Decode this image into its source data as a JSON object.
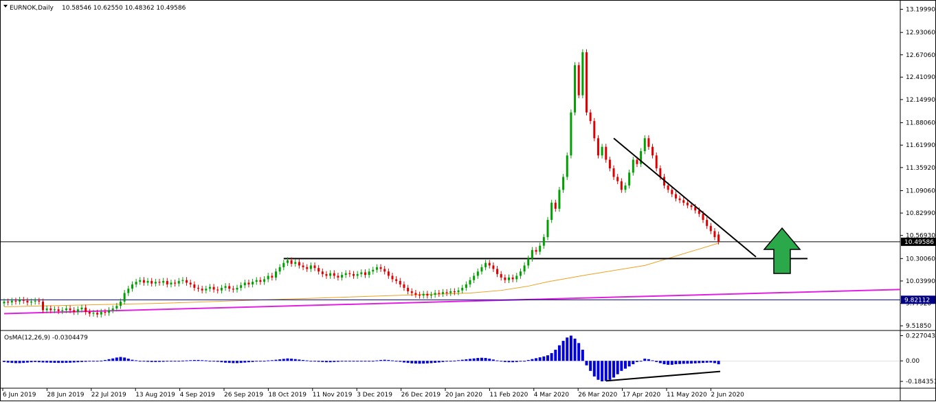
{
  "header": {
    "symbol_tf": "EURNOK,Daily",
    "ohlc": "10.58546 10.62550 10.48362 10.49586"
  },
  "chart_data": {
    "type": "candlestick",
    "symbol": "EURNOK",
    "timeframe": "Daily",
    "price_axis": {
      "labels": [
        "13.19990",
        "12.93060",
        "12.67060",
        "12.41090",
        "12.14990",
        "11.88060",
        "11.61990",
        "11.35920",
        "11.09060",
        "10.82990",
        "10.56930",
        "10.30060",
        "10.03990",
        "9.77920",
        "9.51850"
      ],
      "range": [
        9.48,
        13.26
      ]
    },
    "time_axis": {
      "labels": [
        "6 Jun 2019",
        "28 Jun 2019",
        "22 Jul 2019",
        "13 Aug 2019",
        "4 Sep 2019",
        "26 Sep 2019",
        "18 Oct 2019",
        "11 Nov 2019",
        "3 Dec 2019",
        "26 Dec 2019",
        "20 Jan 2020",
        "11 Feb 2020",
        "4 Mar 2020",
        "26 Mar 2020",
        "17 Apr 2020",
        "11 May 2020",
        "2 Jun 2020"
      ]
    },
    "current_price_label": "10.49586",
    "support_price_label": "9.82112",
    "current_price": 10.49586,
    "support_price": 9.82112,
    "resistance_level": 10.3,
    "colors": {
      "bull": "#00a000",
      "bear": "#e00000",
      "ma": "#f0a020",
      "trend": "#e020e0",
      "support": "#000080",
      "arrow": "#2aa84a",
      "osma": "#0000dd"
    },
    "candles": {
      "open_close_pairs": [
        [
          9.78,
          9.8
        ],
        [
          9.8,
          9.79
        ],
        [
          9.79,
          9.81
        ],
        [
          9.81,
          9.8
        ],
        [
          9.8,
          9.82
        ],
        [
          9.82,
          9.81
        ],
        [
          9.81,
          9.79
        ],
        [
          9.79,
          9.8
        ],
        [
          9.8,
          9.81
        ],
        [
          9.81,
          9.8
        ],
        [
          9.8,
          9.7
        ],
        [
          9.7,
          9.72
        ],
        [
          9.72,
          9.7
        ],
        [
          9.7,
          9.71
        ],
        [
          9.71,
          9.69
        ],
        [
          9.69,
          9.7
        ],
        [
          9.7,
          9.72
        ],
        [
          9.72,
          9.7
        ],
        [
          9.7,
          9.68
        ],
        [
          9.68,
          9.71
        ],
        [
          9.71,
          9.73
        ],
        [
          9.73,
          9.68
        ],
        [
          9.68,
          9.66
        ],
        [
          9.66,
          9.67
        ],
        [
          9.67,
          9.65
        ],
        [
          9.65,
          9.68
        ],
        [
          9.68,
          9.67
        ],
        [
          9.67,
          9.7
        ],
        [
          9.7,
          9.72
        ],
        [
          9.72,
          9.75
        ],
        [
          9.75,
          9.8
        ],
        [
          9.8,
          9.9
        ],
        [
          9.9,
          9.95
        ],
        [
          9.95,
          10.0
        ],
        [
          10.0,
          10.03
        ],
        [
          10.03,
          10.05
        ],
        [
          10.05,
          10.02
        ],
        [
          10.02,
          10.04
        ],
        [
          10.04,
          10.01
        ],
        [
          10.01,
          10.03
        ],
        [
          10.03,
          10.02
        ],
        [
          10.02,
          10.04
        ],
        [
          10.04,
          10.0
        ],
        [
          10.0,
          10.02
        ],
        [
          10.02,
          10.01
        ],
        [
          10.01,
          10.04
        ],
        [
          10.04,
          10.05
        ],
        [
          10.05,
          10.02
        ],
        [
          10.02,
          10.0
        ],
        [
          10.0,
          9.96
        ],
        [
          9.96,
          9.95
        ],
        [
          9.95,
          9.93
        ],
        [
          9.93,
          9.95
        ],
        [
          9.95,
          9.97
        ],
        [
          9.97,
          9.94
        ],
        [
          9.94,
          9.93
        ],
        [
          9.93,
          9.96
        ],
        [
          9.96,
          9.98
        ],
        [
          9.98,
          9.95
        ],
        [
          9.95,
          9.94
        ],
        [
          9.94,
          9.96
        ],
        [
          9.96,
          9.99
        ],
        [
          9.99,
          10.02
        ],
        [
          10.02,
          10.0
        ],
        [
          10.0,
          10.03
        ],
        [
          10.03,
          10.05
        ],
        [
          10.05,
          10.03
        ],
        [
          10.03,
          10.06
        ],
        [
          10.06,
          10.1
        ],
        [
          10.1,
          10.08
        ],
        [
          10.08,
          10.15
        ],
        [
          10.15,
          10.2
        ],
        [
          10.2,
          10.25
        ],
        [
          10.25,
          10.28
        ],
        [
          10.28,
          10.24
        ],
        [
          10.24,
          10.26
        ],
        [
          10.26,
          10.22
        ],
        [
          10.22,
          10.2
        ],
        [
          10.2,
          10.18
        ],
        [
          10.18,
          10.22
        ],
        [
          10.22,
          10.19
        ],
        [
          10.19,
          10.15
        ],
        [
          10.15,
          10.12
        ],
        [
          10.12,
          10.1
        ],
        [
          10.1,
          10.13
        ],
        [
          10.13,
          10.1
        ],
        [
          10.1,
          10.08
        ],
        [
          10.08,
          10.11
        ],
        [
          10.11,
          10.13
        ],
        [
          10.13,
          10.12
        ],
        [
          10.12,
          10.1
        ],
        [
          10.1,
          10.12
        ],
        [
          10.12,
          10.14
        ],
        [
          10.14,
          10.11
        ],
        [
          10.11,
          10.15
        ],
        [
          10.15,
          10.17
        ],
        [
          10.17,
          10.2
        ],
        [
          10.2,
          10.18
        ],
        [
          10.18,
          10.15
        ],
        [
          10.15,
          10.1
        ],
        [
          10.1,
          10.06
        ],
        [
          10.06,
          10.04
        ],
        [
          10.04,
          10.0
        ],
        [
          10.0,
          9.96
        ],
        [
          9.96,
          9.92
        ],
        [
          9.92,
          9.9
        ],
        [
          9.9,
          9.88
        ],
        [
          9.88,
          9.87
        ],
        [
          9.87,
          9.89
        ],
        [
          9.89,
          9.87
        ],
        [
          9.87,
          9.88
        ],
        [
          9.88,
          9.9
        ],
        [
          9.9,
          9.89
        ],
        [
          9.89,
          9.91
        ],
        [
          9.91,
          9.9
        ],
        [
          9.9,
          9.92
        ],
        [
          9.92,
          9.91
        ],
        [
          9.91,
          9.93
        ],
        [
          9.93,
          9.96
        ],
        [
          9.96,
          10.0
        ],
        [
          10.0,
          10.05
        ],
        [
          10.05,
          10.1
        ],
        [
          10.1,
          10.15
        ],
        [
          10.15,
          10.2
        ],
        [
          10.2,
          10.25
        ],
        [
          10.25,
          10.22
        ],
        [
          10.22,
          10.18
        ],
        [
          10.18,
          10.12
        ],
        [
          10.12,
          10.08
        ],
        [
          10.08,
          10.05
        ],
        [
          10.05,
          10.08
        ],
        [
          10.08,
          10.06
        ],
        [
          10.06,
          10.1
        ],
        [
          10.1,
          10.15
        ],
        [
          10.15,
          10.22
        ],
        [
          10.22,
          10.3
        ],
        [
          10.3,
          10.4
        ],
        [
          10.4,
          10.38
        ],
        [
          10.38,
          10.45
        ],
        [
          10.45,
          10.55
        ],
        [
          10.55,
          10.75
        ],
        [
          10.75,
          10.95
        ],
        [
          10.95,
          10.88
        ],
        [
          10.88,
          11.1
        ],
        [
          11.1,
          11.25
        ],
        [
          11.25,
          11.5
        ],
        [
          11.5,
          12.0
        ],
        [
          12.0,
          12.55
        ],
        [
          12.55,
          12.2
        ],
        [
          12.2,
          12.7
        ],
        [
          12.7,
          12.0
        ],
        [
          12.0,
          11.9
        ],
        [
          11.9,
          11.7
        ],
        [
          11.7,
          11.5
        ],
        [
          11.5,
          11.6
        ],
        [
          11.6,
          11.45
        ],
        [
          11.45,
          11.35
        ],
        [
          11.35,
          11.25
        ],
        [
          11.25,
          11.2
        ],
        [
          11.2,
          11.1
        ],
        [
          11.1,
          11.15
        ],
        [
          11.15,
          11.3
        ],
        [
          11.3,
          11.45
        ],
        [
          11.45,
          11.4
        ],
        [
          11.4,
          11.55
        ],
        [
          11.55,
          11.7
        ],
        [
          11.7,
          11.6
        ],
        [
          11.6,
          11.5
        ],
        [
          11.5,
          11.35
        ],
        [
          11.35,
          11.25
        ],
        [
          11.25,
          11.15
        ],
        [
          11.15,
          11.1
        ],
        [
          11.1,
          11.05
        ],
        [
          11.05,
          11.0
        ],
        [
          11.0,
          10.98
        ],
        [
          10.98,
          10.95
        ],
        [
          10.95,
          10.92
        ],
        [
          10.92,
          10.9
        ],
        [
          10.9,
          10.86
        ],
        [
          10.86,
          10.82
        ],
        [
          10.82,
          10.75
        ],
        [
          10.75,
          10.68
        ],
        [
          10.68,
          10.62
        ],
        [
          10.62,
          10.55
        ],
        [
          10.58,
          10.5
        ]
      ]
    },
    "moving_average": [
      [
        0,
        9.74
      ],
      [
        40,
        9.78
      ],
      [
        80,
        9.84
      ],
      [
        120,
        9.9
      ],
      [
        128,
        9.93
      ],
      [
        135,
        9.98
      ],
      [
        140,
        10.03
      ],
      [
        150,
        10.11
      ],
      [
        165,
        10.22
      ],
      [
        184,
        10.48
      ]
    ],
    "trendline_magenta": [
      [
        0,
        9.66
      ],
      [
        230,
        9.94
      ]
    ],
    "descending_trendline": [
      [
        157,
        11.7
      ],
      [
        188,
        10.32
      ]
    ],
    "osma": {
      "label": "OsMA(12,26,9) -0.0304479",
      "axis_labels": [
        "0.2270433",
        "0.00",
        "-0.1843519"
      ],
      "range": [
        -0.19,
        0.23
      ],
      "values": [
        -0.01,
        -0.015,
        -0.018,
        -0.02,
        -0.02,
        -0.018,
        -0.015,
        -0.012,
        -0.01,
        -0.012,
        -0.014,
        -0.015,
        -0.016,
        -0.017,
        -0.018,
        -0.018,
        -0.017,
        -0.016,
        -0.014,
        -0.012,
        -0.01,
        -0.008,
        -0.006,
        -0.004,
        -0.002,
        0.002,
        0.008,
        0.015,
        0.022,
        0.03,
        0.035,
        0.03,
        0.02,
        0.01,
        0.005,
        0.0,
        -0.005,
        -0.008,
        -0.01,
        -0.01,
        -0.009,
        -0.008,
        -0.006,
        -0.004,
        -0.002,
        0.0,
        0.002,
        0.004,
        0.006,
        0.008,
        0.008,
        0.006,
        0.004,
        0.0,
        -0.004,
        -0.008,
        -0.012,
        -0.016,
        -0.018,
        -0.02,
        -0.02,
        -0.018,
        -0.015,
        -0.012,
        -0.01,
        -0.006,
        -0.003,
        0.0,
        0.004,
        0.006,
        0.01,
        0.014,
        0.018,
        0.022,
        0.02,
        0.016,
        0.012,
        0.008,
        0.004,
        0.0,
        -0.004,
        -0.008,
        -0.01,
        -0.012,
        -0.012,
        -0.01,
        -0.008,
        -0.005,
        -0.002,
        0.0,
        -0.002,
        -0.004,
        -0.006,
        -0.005,
        -0.003,
        0.0,
        0.004,
        0.008,
        0.01,
        0.008,
        0.004,
        -0.002,
        -0.008,
        -0.014,
        -0.018,
        -0.022,
        -0.024,
        -0.025,
        -0.024,
        -0.022,
        -0.02,
        -0.017,
        -0.014,
        -0.01,
        -0.006,
        -0.002,
        0.002,
        0.006,
        0.01,
        0.014,
        0.018,
        0.022,
        0.026,
        0.028,
        0.026,
        0.02,
        0.012,
        0.004,
        -0.004,
        -0.01,
        -0.012,
        -0.012,
        -0.01,
        -0.006,
        0.0,
        0.008,
        0.016,
        0.024,
        0.032,
        0.04,
        0.05,
        0.07,
        0.1,
        0.14,
        0.18,
        0.21,
        0.227,
        0.2,
        0.16,
        0.1,
        -0.04,
        -0.09,
        -0.14,
        -0.17,
        -0.184,
        -0.18,
        -0.17,
        -0.15,
        -0.12,
        -0.09,
        -0.07,
        -0.05,
        -0.03,
        -0.01,
        0.0,
        0.02,
        0.015,
        0.005,
        -0.01,
        -0.02,
        -0.03,
        -0.035,
        -0.035,
        -0.03,
        -0.028,
        -0.026,
        -0.025,
        -0.024,
        -0.022,
        -0.02,
        -0.018,
        -0.016,
        -0.015,
        -0.02,
        -0.0304
      ]
    },
    "osma_divergence_line": [
      [
        155,
        -0.18
      ],
      [
        188,
        -0.095
      ]
    ]
  }
}
